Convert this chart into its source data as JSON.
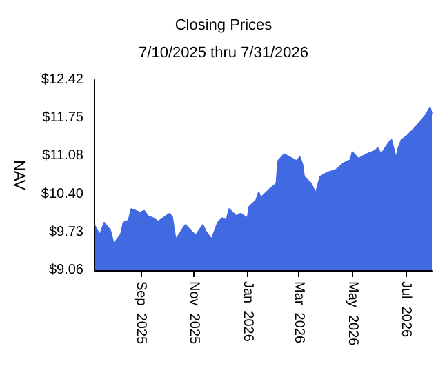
{
  "chart_data": {
    "type": "area",
    "title": "Closing Prices",
    "subtitle": "7/10/2025 thru 7/31/2026",
    "ylabel": "NAV",
    "x": [
      "2025-07-10",
      "2025-07-16",
      "2025-07-21",
      "2025-07-28",
      "2025-08-01",
      "2025-08-09",
      "2025-08-12",
      "2025-08-18",
      "2025-08-21",
      "2025-08-31",
      "2025-09-05",
      "2025-09-09",
      "2025-09-15",
      "2025-09-21",
      "2025-10-01",
      "2025-10-04",
      "2025-10-07",
      "2025-10-11",
      "2025-10-18",
      "2025-10-22",
      "2025-10-30",
      "2025-11-03",
      "2025-11-11",
      "2025-11-15",
      "2025-11-21",
      "2025-11-28",
      "2025-12-03",
      "2025-12-08",
      "2025-12-11",
      "2025-12-19",
      "2025-12-24",
      "2026-01-01",
      "2026-01-03",
      "2026-01-11",
      "2026-01-14",
      "2026-01-16",
      "2026-01-27",
      "2026-02-03",
      "2026-02-05",
      "2026-02-12",
      "2026-02-18",
      "2026-02-26",
      "2026-03-02",
      "2026-03-05",
      "2026-03-07",
      "2026-03-15",
      "2026-03-20",
      "2026-03-23",
      "2026-03-25",
      "2026-04-03",
      "2026-04-12",
      "2026-04-21",
      "2026-04-29",
      "2026-05-01",
      "2026-05-08",
      "2026-05-17",
      "2026-05-27",
      "2026-05-30",
      "2026-06-03",
      "2026-06-12",
      "2026-06-15",
      "2026-06-20",
      "2026-06-22",
      "2026-06-26",
      "2026-07-03",
      "2026-07-13",
      "2026-07-24",
      "2026-07-29",
      "2026-07-31"
    ],
    "series": [
      {
        "color": "#4169e1",
        "values": [
          9.86,
          9.68,
          9.9,
          9.77,
          9.53,
          9.69,
          9.9,
          9.94,
          10.14,
          10.08,
          10.11,
          10.02,
          9.98,
          9.92,
          10.03,
          10.06,
          10.0,
          9.6,
          9.77,
          9.86,
          9.73,
          9.68,
          9.86,
          9.73,
          9.61,
          9.9,
          9.98,
          9.94,
          10.14,
          10.02,
          10.06,
          9.98,
          10.18,
          10.3,
          10.44,
          10.34,
          10.5,
          10.59,
          10.99,
          11.11,
          11.06,
          10.99,
          11.06,
          10.93,
          10.71,
          10.59,
          10.42,
          10.59,
          10.71,
          10.79,
          10.83,
          10.95,
          11.01,
          11.15,
          11.03,
          11.11,
          11.17,
          11.22,
          11.11,
          11.32,
          11.36,
          11.03,
          11.19,
          11.36,
          11.44,
          11.6,
          11.8,
          11.94,
          11.82
        ]
      }
    ],
    "xlim": [
      "2025-07-10",
      "2026-07-31"
    ],
    "xticks": [
      {
        "value": "2025-09-01",
        "label": "Sep  2025"
      },
      {
        "value": "2025-11-01",
        "label": "Nov  2025"
      },
      {
        "value": "2026-01-01",
        "label": "Jan  2026"
      },
      {
        "value": "2026-03-01",
        "label": "Mar  2026"
      },
      {
        "value": "2026-05-01",
        "label": "May  2026"
      },
      {
        "value": "2026-07-01",
        "label": "Jul  2026"
      }
    ],
    "ylim": [
      9.06,
      12.42
    ],
    "yticks": [
      {
        "value": 9.06,
        "label": "$9.06"
      },
      {
        "value": 9.73,
        "label": "$9.73"
      },
      {
        "value": 10.4,
        "label": "$10.40"
      },
      {
        "value": 11.08,
        "label": "$11.08"
      },
      {
        "value": 11.75,
        "label": "$11.75"
      },
      {
        "value": 12.42,
        "label": "$12.42"
      }
    ],
    "grid": false
  }
}
